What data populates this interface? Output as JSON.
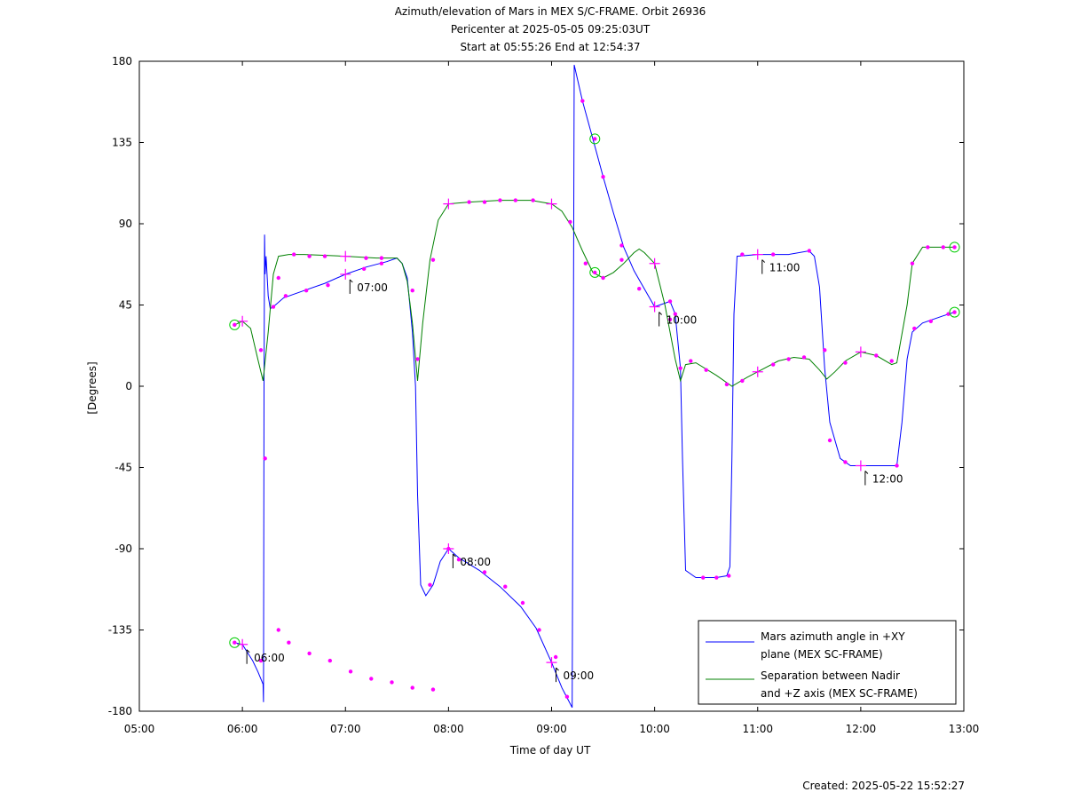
{
  "chart_data": {
    "type": "line",
    "title": "Azimuth/elevation of Mars in MEX S/C-FRAME.  Orbit 26936",
    "subtitle_1": "Pericenter at 2025-05-05 09:25:03UT",
    "subtitle_2": "Start at 05:55:26 End at 12:54:37",
    "xlabel": "Time of day UT",
    "ylabel": "[Degrees]",
    "xlim": [
      5,
      13
    ],
    "ylim": [
      -180,
      180
    ],
    "x_ticks": [
      {
        "v": 5,
        "label": "05:00"
      },
      {
        "v": 6,
        "label": "06:00"
      },
      {
        "v": 7,
        "label": "07:00"
      },
      {
        "v": 8,
        "label": "08:00"
      },
      {
        "v": 9,
        "label": "09:00"
      },
      {
        "v": 10,
        "label": "10:00"
      },
      {
        "v": 11,
        "label": "11:00"
      },
      {
        "v": 12,
        "label": "12:00"
      },
      {
        "v": 13,
        "label": "13:00"
      }
    ],
    "y_ticks": [
      {
        "v": 180,
        "label": "180"
      },
      {
        "v": 135,
        "label": "135"
      },
      {
        "v": 90,
        "label": "90"
      },
      {
        "v": 45,
        "label": "45"
      },
      {
        "v": 0,
        "label": "0"
      },
      {
        "v": -45,
        "label": "-45"
      },
      {
        "v": -90,
        "label": "-90"
      },
      {
        "v": -135,
        "label": "-135"
      },
      {
        "v": -180,
        "label": "-180"
      }
    ],
    "grid": false,
    "legend_position": "bottom-right",
    "series": [
      {
        "name_line1": "Mars azimuth angle in +XY",
        "name_line2": "plane (MEX SC-FRAME)",
        "color": "#0000ff",
        "points": [
          [
            5.924,
            -142
          ],
          [
            6.0,
            -143
          ],
          [
            6.1,
            -152
          ],
          [
            6.15,
            -158
          ],
          [
            6.2,
            -165
          ],
          [
            6.205,
            -175
          ],
          [
            6.21,
            0
          ],
          [
            6.215,
            84
          ],
          [
            6.22,
            62
          ],
          [
            6.23,
            72
          ],
          [
            6.25,
            50
          ],
          [
            6.27,
            43
          ],
          [
            6.3,
            44
          ],
          [
            6.4,
            49
          ],
          [
            6.6,
            53
          ],
          [
            6.8,
            57
          ],
          [
            7.0,
            62
          ],
          [
            7.2,
            66
          ],
          [
            7.4,
            69
          ],
          [
            7.5,
            71
          ],
          [
            7.55,
            68
          ],
          [
            7.6,
            60
          ],
          [
            7.65,
            30
          ],
          [
            7.68,
            0
          ],
          [
            7.7,
            -60
          ],
          [
            7.73,
            -110
          ],
          [
            7.78,
            -116
          ],
          [
            7.85,
            -110
          ],
          [
            7.92,
            -97
          ],
          [
            8.0,
            -90
          ],
          [
            8.1,
            -95
          ],
          [
            8.3,
            -102
          ],
          [
            8.5,
            -111
          ],
          [
            8.7,
            -122
          ],
          [
            8.85,
            -134
          ],
          [
            9.0,
            -153
          ],
          [
            9.1,
            -167
          ],
          [
            9.2,
            -178
          ],
          [
            9.21,
            0
          ],
          [
            9.22,
            178
          ],
          [
            9.3,
            158
          ],
          [
            9.4,
            137
          ],
          [
            9.5,
            116
          ],
          [
            9.6,
            96
          ],
          [
            9.7,
            77
          ],
          [
            9.8,
            64
          ],
          [
            9.9,
            54
          ],
          [
            10.0,
            44
          ],
          [
            10.05,
            45
          ],
          [
            10.15,
            47
          ],
          [
            10.2,
            40
          ],
          [
            10.25,
            10
          ],
          [
            10.27,
            -40
          ],
          [
            10.3,
            -102
          ],
          [
            10.4,
            -106
          ],
          [
            10.5,
            -106
          ],
          [
            10.6,
            -106
          ],
          [
            10.7,
            -105
          ],
          [
            10.73,
            -100
          ],
          [
            10.75,
            -40
          ],
          [
            10.77,
            40
          ],
          [
            10.8,
            72
          ],
          [
            11.0,
            73
          ],
          [
            11.3,
            73
          ],
          [
            11.5,
            75
          ],
          [
            11.55,
            72
          ],
          [
            11.6,
            55
          ],
          [
            11.65,
            10
          ],
          [
            11.7,
            -20
          ],
          [
            11.8,
            -40
          ],
          [
            11.9,
            -44
          ],
          [
            12.0,
            -44
          ],
          [
            12.2,
            -44
          ],
          [
            12.35,
            -44
          ],
          [
            12.4,
            -20
          ],
          [
            12.45,
            15
          ],
          [
            12.5,
            30
          ],
          [
            12.6,
            35
          ],
          [
            12.8,
            39
          ],
          [
            12.91,
            41
          ]
        ]
      },
      {
        "name_line1": "Separation between Nadir",
        "name_line2": "and +Z axis (MEX SC-FRAME)",
        "color": "#008000",
        "points": [
          [
            5.924,
            34
          ],
          [
            6.0,
            36
          ],
          [
            6.08,
            32
          ],
          [
            6.15,
            15
          ],
          [
            6.2,
            3
          ],
          [
            6.25,
            30
          ],
          [
            6.3,
            62
          ],
          [
            6.35,
            72
          ],
          [
            6.45,
            73
          ],
          [
            6.6,
            73
          ],
          [
            7.0,
            72
          ],
          [
            7.3,
            71
          ],
          [
            7.5,
            71
          ],
          [
            7.55,
            68
          ],
          [
            7.6,
            58
          ],
          [
            7.65,
            35
          ],
          [
            7.7,
            3
          ],
          [
            7.75,
            35
          ],
          [
            7.82,
            70
          ],
          [
            7.9,
            92
          ],
          [
            8.0,
            101
          ],
          [
            8.2,
            102
          ],
          [
            8.5,
            103
          ],
          [
            8.8,
            103
          ],
          [
            9.0,
            101
          ],
          [
            9.1,
            97
          ],
          [
            9.2,
            88
          ],
          [
            9.3,
            75
          ],
          [
            9.4,
            63
          ],
          [
            9.5,
            60
          ],
          [
            9.6,
            63
          ],
          [
            9.7,
            68
          ],
          [
            9.8,
            74
          ],
          [
            9.85,
            76
          ],
          [
            9.9,
            74
          ],
          [
            10.0,
            68
          ],
          [
            10.1,
            45
          ],
          [
            10.2,
            15
          ],
          [
            10.25,
            3
          ],
          [
            10.3,
            12
          ],
          [
            10.4,
            13
          ],
          [
            10.6,
            6
          ],
          [
            10.75,
            0
          ],
          [
            10.9,
            5
          ],
          [
            11.0,
            8
          ],
          [
            11.2,
            14
          ],
          [
            11.35,
            16
          ],
          [
            11.5,
            15
          ],
          [
            11.6,
            9
          ],
          [
            11.67,
            4
          ],
          [
            11.75,
            8
          ],
          [
            11.85,
            14
          ],
          [
            12.0,
            19
          ],
          [
            12.15,
            17
          ],
          [
            12.3,
            12
          ],
          [
            12.35,
            13
          ],
          [
            12.45,
            45
          ],
          [
            12.5,
            68
          ],
          [
            12.6,
            77
          ],
          [
            12.8,
            77
          ],
          [
            12.91,
            77
          ]
        ]
      }
    ],
    "magenta_dots": [
      [
        6.18,
        -152
      ],
      [
        6.22,
        -40
      ],
      [
        6.35,
        -135
      ],
      [
        6.45,
        -142
      ],
      [
        6.65,
        -148
      ],
      [
        6.85,
        -152
      ],
      [
        7.05,
        -158
      ],
      [
        7.25,
        -162
      ],
      [
        7.45,
        -164
      ],
      [
        7.65,
        -167
      ],
      [
        7.85,
        -168
      ],
      [
        6.18,
        20
      ],
      [
        6.35,
        60
      ],
      [
        6.5,
        73
      ],
      [
        6.65,
        72
      ],
      [
        6.8,
        72
      ],
      [
        7.2,
        71
      ],
      [
        7.35,
        71
      ],
      [
        7.65,
        53
      ],
      [
        7.7,
        15
      ],
      [
        7.85,
        70
      ],
      [
        8.2,
        102
      ],
      [
        8.35,
        102
      ],
      [
        8.5,
        103
      ],
      [
        8.65,
        103
      ],
      [
        8.82,
        103
      ],
      [
        9.18,
        91
      ],
      [
        9.33,
        68
      ],
      [
        9.5,
        60
      ],
      [
        9.68,
        70
      ],
      [
        10.15,
        37
      ],
      [
        10.25,
        10
      ],
      [
        10.35,
        14
      ],
      [
        10.5,
        9
      ],
      [
        10.7,
        1
      ],
      [
        10.85,
        3
      ],
      [
        11.15,
        12
      ],
      [
        11.3,
        15
      ],
      [
        11.45,
        16
      ],
      [
        11.65,
        20
      ],
      [
        11.85,
        13
      ],
      [
        12.15,
        17
      ],
      [
        12.3,
        14
      ],
      [
        12.5,
        68
      ],
      [
        12.65,
        77
      ],
      [
        12.8,
        77
      ],
      [
        9.3,
        158
      ],
      [
        9.5,
        116
      ],
      [
        9.68,
        78
      ],
      [
        9.85,
        54
      ],
      [
        6.3,
        44
      ],
      [
        6.42,
        50
      ],
      [
        6.62,
        53
      ],
      [
        6.83,
        56
      ],
      [
        7.18,
        65
      ],
      [
        7.35,
        68
      ],
      [
        8.0,
        -90
      ],
      [
        8.1,
        -96
      ],
      [
        8.35,
        -103
      ],
      [
        8.55,
        -111
      ],
      [
        8.72,
        -120
      ],
      [
        8.88,
        -135
      ],
      [
        9.04,
        -150
      ],
      [
        9.15,
        -172
      ],
      [
        7.82,
        -110
      ],
      [
        10.15,
        47
      ],
      [
        10.2,
        40
      ],
      [
        10.47,
        -106
      ],
      [
        10.6,
        -106
      ],
      [
        10.72,
        -105
      ],
      [
        10.85,
        73
      ],
      [
        11.15,
        73
      ],
      [
        11.5,
        75
      ],
      [
        11.7,
        -30
      ],
      [
        11.85,
        -42
      ],
      [
        12.35,
        -44
      ],
      [
        12.52,
        32
      ],
      [
        12.68,
        36
      ],
      [
        12.85,
        40
      ]
    ],
    "plus_markers": [
      [
        6.0,
        -143
      ],
      [
        6.0,
        36
      ],
      [
        7.0,
        62
      ],
      [
        7.0,
        72
      ],
      [
        8.0,
        -90
      ],
      [
        8.0,
        101
      ],
      [
        9.0,
        -153
      ],
      [
        9.0,
        101
      ],
      [
        10.0,
        44
      ],
      [
        10.0,
        68
      ],
      [
        11.0,
        73
      ],
      [
        11.0,
        8
      ],
      [
        12.0,
        -44
      ],
      [
        12.0,
        19
      ]
    ],
    "circle_markers": [
      [
        5.924,
        -142
      ],
      [
        5.924,
        34
      ],
      [
        9.42,
        137
      ],
      [
        9.42,
        63
      ],
      [
        12.91,
        41
      ],
      [
        12.91,
        77
      ]
    ],
    "time_annotations": [
      {
        "x": 6.0,
        "y": -143,
        "label": "06:00"
      },
      {
        "x": 7.0,
        "y": 62,
        "label": "07:00"
      },
      {
        "x": 8.0,
        "y": -90,
        "label": "08:00"
      },
      {
        "x": 9.0,
        "y": -153,
        "label": "09:00"
      },
      {
        "x": 10.0,
        "y": 44,
        "label": "10:00"
      },
      {
        "x": 11.0,
        "y": 73,
        "label": "11:00"
      },
      {
        "x": 12.0,
        "y": -44,
        "label": "12:00"
      }
    ]
  },
  "footer": {
    "created": "Created: 2025-05-22 15:52:27"
  }
}
